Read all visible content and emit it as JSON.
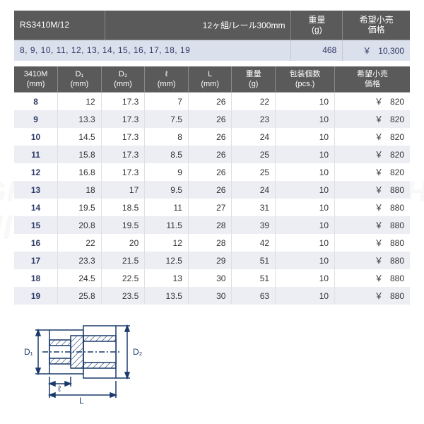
{
  "watermark": {
    "line1": "HIGH QUALITY TOOL SELECT SHOP",
    "line2": "EHIME MACHINE"
  },
  "set": {
    "model": "RS3410M/12",
    "desc": "12ヶ組/レール300mm",
    "weight_header": "重量",
    "weight_unit": "(g)",
    "price_header": "希望小売",
    "price_sub": "価格",
    "sizes_list": "8, 9, 10, 11, 12, 13, 14, 15, 16, 17, 18, 19",
    "weight": "468",
    "price": "10,300",
    "currency": "￥"
  },
  "spec": {
    "headers": {
      "model": "3410M",
      "model_unit": "(mm)",
      "d1": "D₁",
      "d1_unit": "(mm)",
      "d2": "D₂",
      "d2_unit": "(mm)",
      "l1": "ℓ",
      "l1_unit": "(mm)",
      "l2": "L",
      "l2_unit": "(mm)",
      "weight": "重量",
      "weight_unit": "(g)",
      "pack": "包装個数",
      "pack_unit": "(pcs.)",
      "price": "希望小売",
      "price_sub": "価格"
    },
    "currency": "￥",
    "rows": [
      {
        "size": "8",
        "d1": "12",
        "d2": "17.3",
        "l1": "7",
        "l2": "26",
        "w": "22",
        "pack": "10",
        "price": "820"
      },
      {
        "size": "9",
        "d1": "13.3",
        "d2": "17.3",
        "l1": "7.5",
        "l2": "26",
        "w": "23",
        "pack": "10",
        "price": "820"
      },
      {
        "size": "10",
        "d1": "14.5",
        "d2": "17.3",
        "l1": "8",
        "l2": "26",
        "w": "24",
        "pack": "10",
        "price": "820"
      },
      {
        "size": "11",
        "d1": "15.8",
        "d2": "17.3",
        "l1": "8.5",
        "l2": "26",
        "w": "25",
        "pack": "10",
        "price": "820"
      },
      {
        "size": "12",
        "d1": "16.8",
        "d2": "17.3",
        "l1": "9",
        "l2": "26",
        "w": "25",
        "pack": "10",
        "price": "820"
      },
      {
        "size": "13",
        "d1": "18",
        "d2": "17",
        "l1": "9.5",
        "l2": "26",
        "w": "24",
        "pack": "10",
        "price": "880"
      },
      {
        "size": "14",
        "d1": "19.5",
        "d2": "18.5",
        "l1": "11",
        "l2": "27",
        "w": "31",
        "pack": "10",
        "price": "880"
      },
      {
        "size": "15",
        "d1": "20.8",
        "d2": "19.5",
        "l1": "11.5",
        "l2": "28",
        "w": "39",
        "pack": "10",
        "price": "880"
      },
      {
        "size": "16",
        "d1": "22",
        "d2": "20",
        "l1": "12",
        "l2": "28",
        "w": "42",
        "pack": "10",
        "price": "880"
      },
      {
        "size": "17",
        "d1": "23.3",
        "d2": "21.5",
        "l1": "12.5",
        "l2": "29",
        "w": "51",
        "pack": "10",
        "price": "880"
      },
      {
        "size": "18",
        "d1": "24.5",
        "d2": "22.5",
        "l1": "13",
        "l2": "30",
        "w": "51",
        "pack": "10",
        "price": "880"
      },
      {
        "size": "19",
        "d1": "25.8",
        "d2": "23.5",
        "l1": "13.5",
        "l2": "30",
        "w": "63",
        "pack": "10",
        "price": "880"
      }
    ]
  },
  "diagram": {
    "d1_label": "D₁",
    "d2_label": "D₂",
    "l1_label": "ℓ",
    "l2_label": "L",
    "stroke": "#1a3a6a",
    "hatch": "#1a3a6a",
    "bg": "#ffffff"
  },
  "style": {
    "header_bg": "#5a5a5a",
    "header_fg": "#ffffff",
    "row_alt_bg": "#eceef4",
    "set_row_bg": "#dbe0ed",
    "size_color": "#2f3a66"
  }
}
